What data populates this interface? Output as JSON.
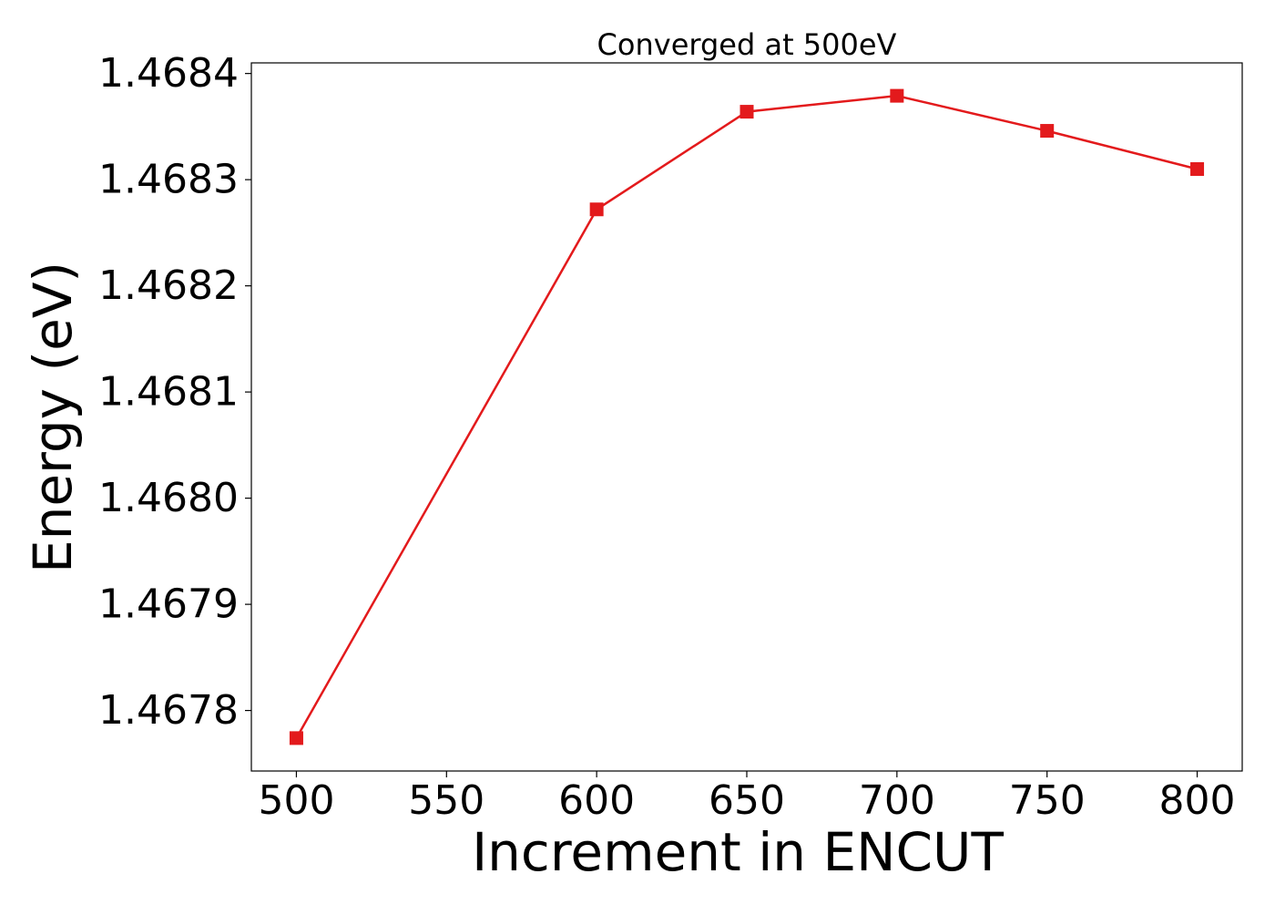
{
  "chart_data": {
    "type": "line",
    "title": "Converged at 500eV",
    "xlabel": "Increment in ENCUT",
    "ylabel": "Energy (eV)",
    "x": [
      500,
      600,
      650,
      700,
      750,
      800
    ],
    "series": [
      {
        "values": [
          1.467774,
          1.468272,
          1.468364,
          1.468379,
          1.468346,
          1.46831
        ],
        "color": "#e31a1c",
        "marker": "square"
      }
    ],
    "xlim": [
      485,
      815
    ],
    "ylim": [
      1.467743,
      1.46841
    ],
    "xticks": [
      500,
      550,
      600,
      650,
      700,
      750,
      800
    ],
    "xtick_labels": [
      "500",
      "550",
      "600",
      "650",
      "700",
      "750",
      "800"
    ],
    "yticks": [
      1.4678,
      1.4679,
      1.468,
      1.4681,
      1.4682,
      1.4683,
      1.4684
    ],
    "ytick_labels": [
      "1.4678",
      "1.4679",
      "1.4680",
      "1.4681",
      "1.4682",
      "1.4683",
      "1.4684"
    ],
    "grid": false,
    "legend": "none"
  }
}
